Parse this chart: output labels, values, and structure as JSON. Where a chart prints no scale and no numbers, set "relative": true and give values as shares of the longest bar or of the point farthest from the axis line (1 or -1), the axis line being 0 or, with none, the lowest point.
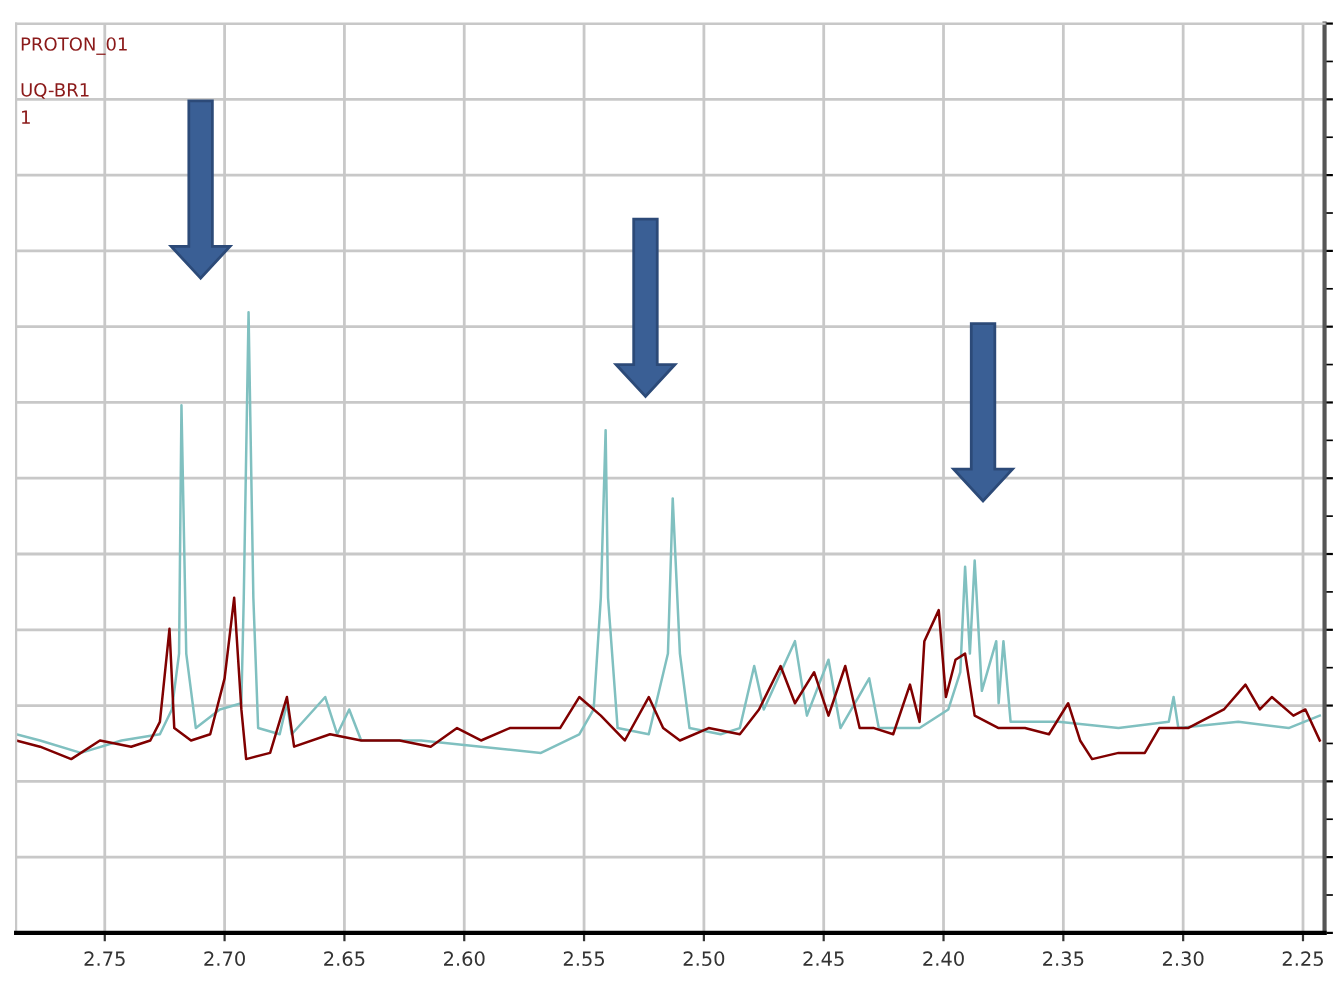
{
  "chart_data": {
    "type": "line",
    "relative": true,
    "grid": true,
    "legend": false,
    "marker": "none",
    "line_style": "solid",
    "annotations": [
      "PROTON_01",
      "UQ-BR1",
      "1"
    ],
    "xlim": [
      2.787,
      2.241
    ],
    "xticks": [
      {
        "value": 2.75,
        "label": "2.75"
      },
      {
        "value": 2.7,
        "label": "2.70"
      },
      {
        "value": 2.65,
        "label": "2.65"
      },
      {
        "value": 2.6,
        "label": "2.60"
      },
      {
        "value": 2.55,
        "label": "2.55"
      },
      {
        "value": 2.5,
        "label": "2.50"
      },
      {
        "value": 2.45,
        "label": "2.45"
      },
      {
        "value": 2.4,
        "label": "2.40"
      },
      {
        "value": 2.35,
        "label": "2.35"
      },
      {
        "value": 2.3,
        "label": "2.30"
      },
      {
        "value": 2.25,
        "label": "2.25"
      }
    ],
    "series": [
      {
        "color": "#80c0c0",
        "x": [
          2.787,
          2.777,
          2.76,
          2.743,
          2.727,
          2.722,
          2.719,
          2.718,
          2.716,
          2.712,
          2.702,
          2.693,
          2.692,
          2.69,
          2.688,
          2.686,
          2.677,
          2.674,
          2.672,
          2.658,
          2.653,
          2.648,
          2.643,
          2.618,
          2.593,
          2.568,
          2.552,
          2.546,
          2.543,
          2.541,
          2.54,
          2.536,
          2.523,
          2.515,
          2.513,
          2.51,
          2.506,
          2.493,
          2.485,
          2.479,
          2.475,
          2.462,
          2.457,
          2.448,
          2.443,
          2.431,
          2.427,
          2.41,
          2.398,
          2.393,
          2.391,
          2.389,
          2.387,
          2.384,
          2.378,
          2.377,
          2.375,
          2.372,
          2.352,
          2.327,
          2.306,
          2.304,
          2.302,
          2.277,
          2.256,
          2.243
        ],
        "values": [
          0.32,
          0.31,
          0.29,
          0.31,
          0.32,
          0.36,
          0.45,
          0.85,
          0.45,
          0.33,
          0.36,
          0.37,
          0.54,
          1.0,
          0.54,
          0.33,
          0.32,
          0.37,
          0.32,
          0.38,
          0.32,
          0.36,
          0.31,
          0.31,
          0.3,
          0.29,
          0.32,
          0.36,
          0.54,
          0.81,
          0.54,
          0.33,
          0.32,
          0.45,
          0.7,
          0.45,
          0.33,
          0.32,
          0.33,
          0.43,
          0.36,
          0.47,
          0.35,
          0.44,
          0.33,
          0.41,
          0.33,
          0.33,
          0.36,
          0.42,
          0.59,
          0.45,
          0.6,
          0.39,
          0.47,
          0.37,
          0.47,
          0.34,
          0.34,
          0.33,
          0.34,
          0.38,
          0.33,
          0.34,
          0.33,
          0.35
        ]
      },
      {
        "color": "#800000",
        "x": [
          2.787,
          2.777,
          2.764,
          2.752,
          2.739,
          2.731,
          2.727,
          2.723,
          2.721,
          2.714,
          2.706,
          2.7,
          2.696,
          2.693,
          2.691,
          2.681,
          2.674,
          2.671,
          2.656,
          2.643,
          2.627,
          2.614,
          2.603,
          2.593,
          2.581,
          2.568,
          2.56,
          2.552,
          2.543,
          2.533,
          2.523,
          2.517,
          2.51,
          2.498,
          2.485,
          2.477,
          2.468,
          2.462,
          2.454,
          2.448,
          2.441,
          2.435,
          2.429,
          2.421,
          2.414,
          2.41,
          2.408,
          2.402,
          2.399,
          2.395,
          2.391,
          2.387,
          2.377,
          2.366,
          2.356,
          2.348,
          2.343,
          2.338,
          2.327,
          2.316,
          2.31,
          2.298,
          2.283,
          2.274,
          2.268,
          2.263,
          2.254,
          2.249,
          2.243
        ],
        "values": [
          0.31,
          0.3,
          0.28,
          0.31,
          0.3,
          0.31,
          0.34,
          0.49,
          0.33,
          0.31,
          0.32,
          0.41,
          0.54,
          0.36,
          0.28,
          0.29,
          0.38,
          0.3,
          0.32,
          0.31,
          0.31,
          0.3,
          0.33,
          0.31,
          0.33,
          0.33,
          0.33,
          0.38,
          0.35,
          0.31,
          0.38,
          0.33,
          0.31,
          0.33,
          0.32,
          0.36,
          0.43,
          0.37,
          0.42,
          0.35,
          0.43,
          0.33,
          0.33,
          0.32,
          0.4,
          0.34,
          0.47,
          0.52,
          0.38,
          0.44,
          0.45,
          0.35,
          0.33,
          0.33,
          0.32,
          0.37,
          0.31,
          0.28,
          0.29,
          0.29,
          0.33,
          0.33,
          0.36,
          0.4,
          0.36,
          0.38,
          0.35,
          0.36,
          0.31
        ]
      }
    ]
  }
}
